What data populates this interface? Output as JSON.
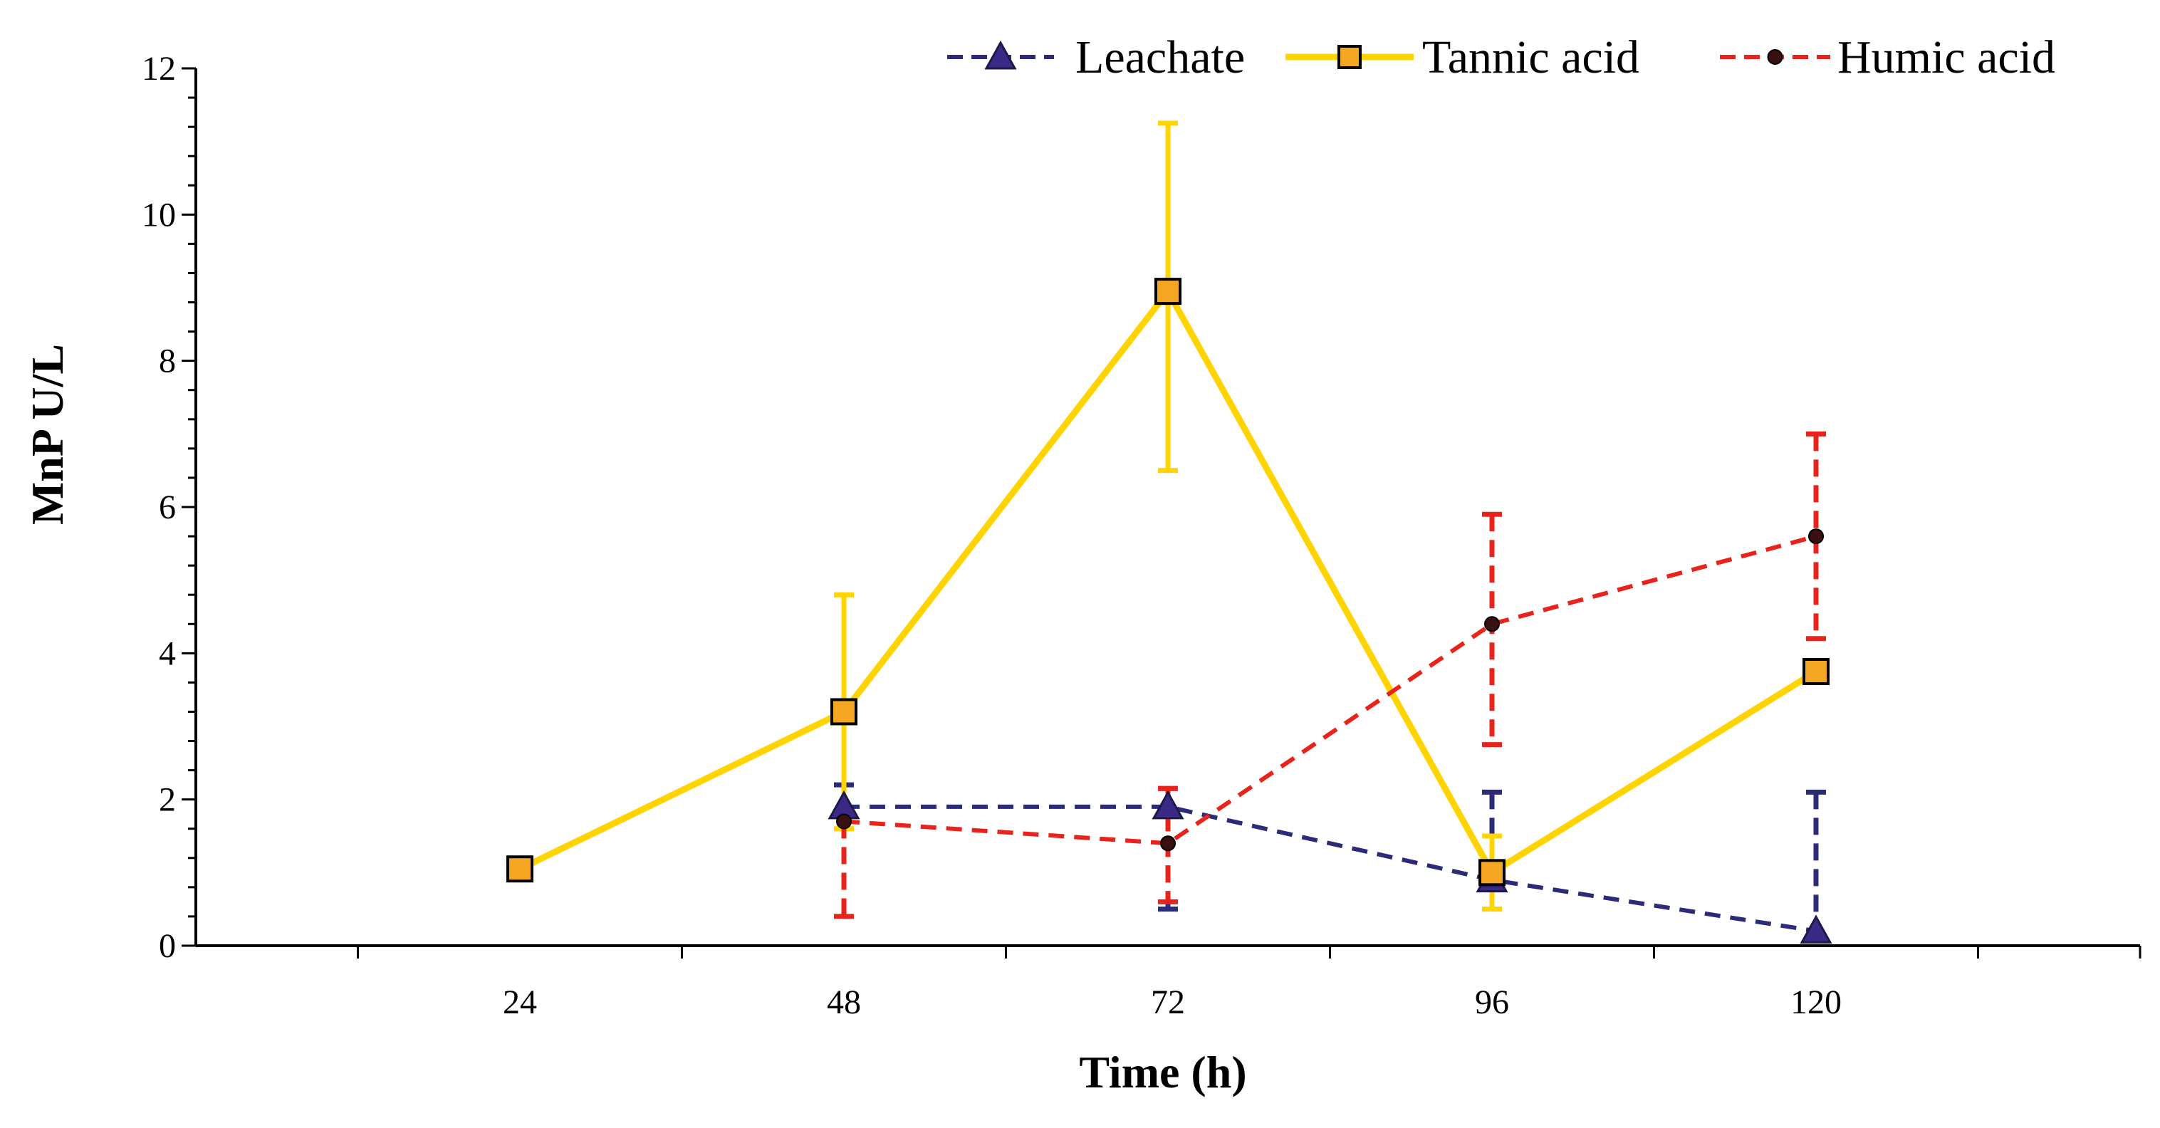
{
  "chart_data": {
    "type": "line",
    "title": "",
    "xlabel": "Time (h)",
    "ylabel": "MnP U/L",
    "x": [
      24,
      48,
      72,
      96,
      120
    ],
    "xticklabels": [
      "24",
      "48",
      "72",
      "96",
      "120"
    ],
    "yticklabels": [
      "0",
      "2",
      "4",
      "6",
      "8",
      "10",
      "12"
    ],
    "ylim": [
      0,
      12
    ],
    "grid": false,
    "legend_position": "top-right",
    "series": [
      {
        "name": "Leachate",
        "marker": "triangle",
        "line_style": "dashed",
        "line_color": "#2b2b7a",
        "marker_fill": "#3b2a85",
        "x": [
          48,
          72,
          96,
          120
        ],
        "values": [
          1.9,
          1.9,
          0.9,
          0.2
        ],
        "err_up": [
          0.3,
          0.25,
          1.2,
          1.9
        ],
        "err_down": [
          0,
          1.4,
          0,
          0
        ]
      },
      {
        "name": "Tannic acid",
        "marker": "square",
        "line_style": "solid",
        "line_color": "#ffd400",
        "marker_fill": "#f5a623",
        "x": [
          24,
          48,
          72,
          96,
          120
        ],
        "values": [
          1.05,
          3.2,
          8.95,
          1.0,
          3.75
        ],
        "err_up": [
          0,
          1.6,
          2.3,
          0.5,
          0
        ],
        "err_down": [
          0,
          1.6,
          2.45,
          0.5,
          0
        ]
      },
      {
        "name": "Humic acid",
        "marker": "circle",
        "line_style": "dashed",
        "line_color": "#e8231c",
        "marker_fill": "#3a1010",
        "x": [
          48,
          72,
          96,
          120
        ],
        "values": [
          1.7,
          1.4,
          4.4,
          5.6
        ],
        "err_up": [
          0,
          0.75,
          1.5,
          1.4
        ],
        "err_down": [
          1.3,
          0.8,
          1.65,
          1.4
        ]
      }
    ]
  }
}
